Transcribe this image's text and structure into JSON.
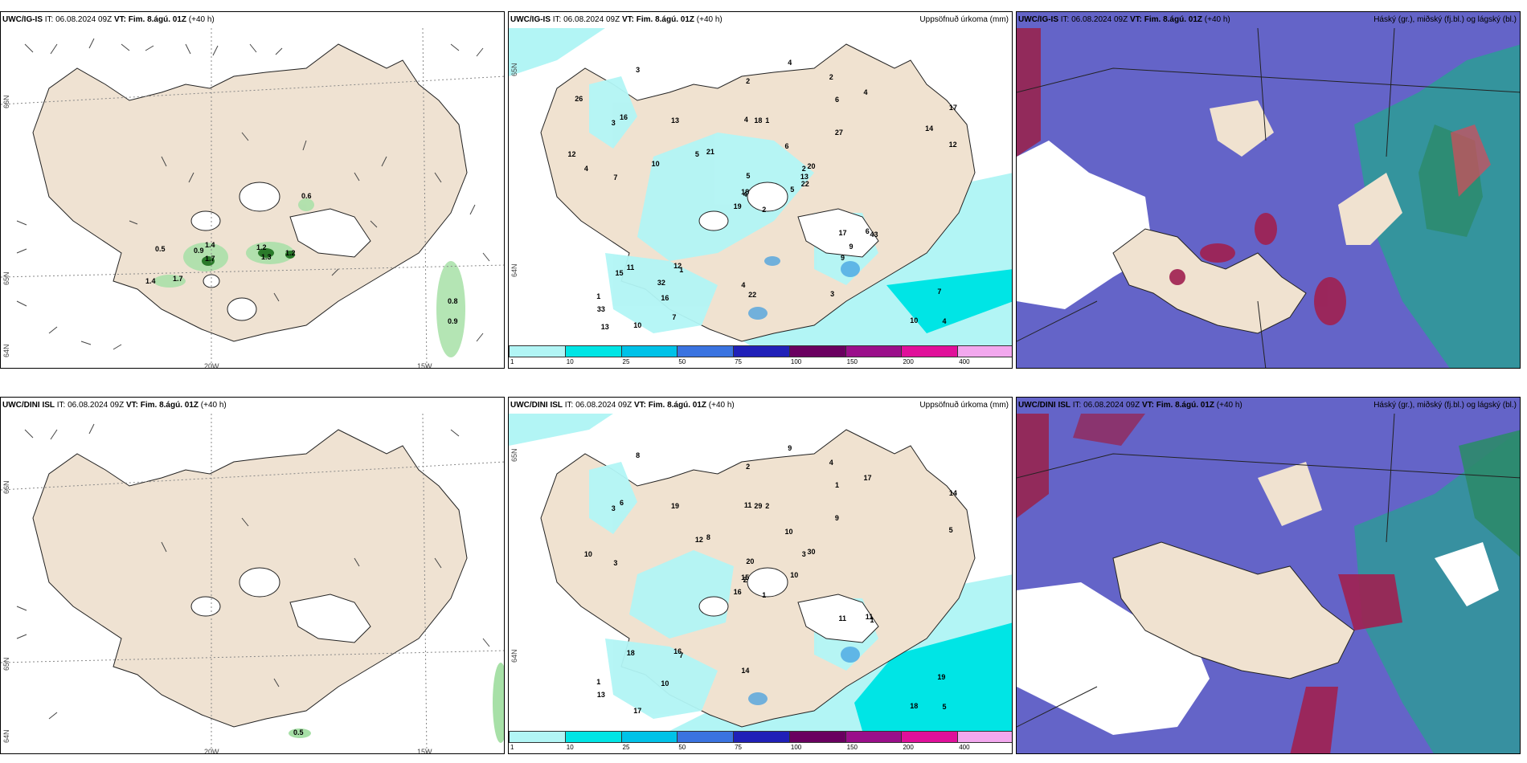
{
  "rows": [
    {
      "model": "UWC/IG-IS",
      "run": "IT: 06.08.2024 09Z",
      "valid": "VT: Fim. 8.ágú. 01Z",
      "lead": "(+40 h)",
      "wind_values": [
        "0.6",
        "0.5",
        "0.9",
        "1.4",
        "1.7",
        "1.2",
        "1.2",
        "1.3",
        "1.4",
        "1.7",
        "0.8",
        "0.9"
      ],
      "precip_values": [
        "2",
        "3",
        "4",
        "1",
        "2",
        "1",
        "2",
        "1",
        "6",
        "5",
        "3",
        "4",
        "7",
        "17",
        "19",
        "27",
        "10",
        "4",
        "6",
        "11",
        "21",
        "33",
        "16",
        "18",
        "20",
        "43",
        "16",
        "2",
        "4",
        "17",
        "12",
        "18",
        "4",
        "5",
        "13",
        "4",
        "12",
        "10",
        "7",
        "6",
        "4",
        "5",
        "10",
        "9",
        "7",
        "12",
        "13",
        "13",
        "22",
        "22",
        "15",
        "14",
        "26",
        "9",
        "3",
        "32"
      ]
    },
    {
      "model": "UWC/DINI ISL",
      "run": "IT: 06.08.2024 09Z",
      "valid": "VT: Fim. 8.ágú. 01Z",
      "lead": "(+40 h)",
      "wind_values": [
        "0.5"
      ],
      "precip_values": [
        "1",
        "3",
        "2",
        "1",
        "3",
        "7",
        "4",
        "2",
        "1",
        "10",
        "8",
        "5",
        "3",
        "14",
        "16",
        "9",
        "17",
        "11",
        "10",
        "18",
        "8",
        "13",
        "10",
        "29",
        "30",
        "1",
        "6",
        "2",
        "10",
        "11",
        "5",
        "15",
        "14",
        "20",
        "19",
        "17",
        "16",
        "18",
        "19",
        "11",
        "9",
        "12"
      ]
    }
  ],
  "precip_title": "Uppsöfnuð úrkoma (mm)",
  "cloud_title": "Háský (gr.), miðský (fj.bl.) og lágský (bl.)",
  "axis_labels": {
    "lon_20w": "20W",
    "lon_15w": "15W",
    "lat_65n": "65N",
    "lat_64n": "64N",
    "lat_66n": "66N"
  },
  "colorbar": {
    "ticks": [
      "1",
      "10",
      "25",
      "50",
      "75",
      "100",
      "150",
      "200",
      "400"
    ],
    "colors": [
      "#b2f5f5",
      "#00e5e5",
      "#00c2e8",
      "#3a73e0",
      "#2020b8",
      "#6a0060",
      "#9a0f8a",
      "#e0109a",
      "#f2a8ee"
    ]
  },
  "colors": {
    "land": "#f0e2d0",
    "sea_cloud": "#6464c8",
    "precip_light": "#a8f2f2"
  }
}
